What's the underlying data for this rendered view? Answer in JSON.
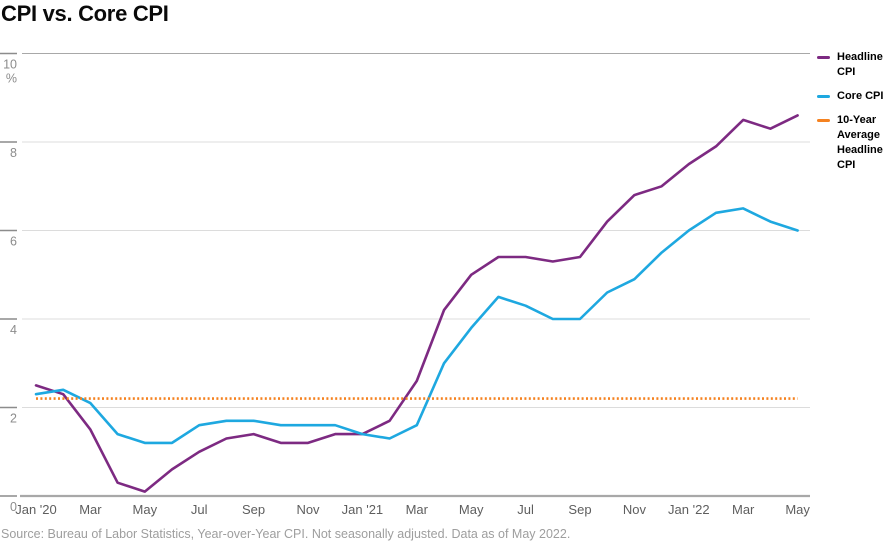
{
  "title": "CPI vs. Core CPI",
  "footer": {
    "source_note": "Source: Bureau of Labor Statistics, Year-over-Year CPI. Not seasonally adjusted. Data as of May 2022."
  },
  "legend": {
    "position": "right",
    "items": [
      {
        "label": "Headline CPI",
        "color": "#7D2A82"
      },
      {
        "label": "Core CPI",
        "color": "#1EA8E0"
      },
      {
        "label": "10-Year Average Headline CPI",
        "color": "#F58220"
      }
    ]
  },
  "chart_data": {
    "type": "line",
    "title": "CPI vs. Core CPI",
    "xlabel": "",
    "ylabel": "%",
    "ylim": [
      0,
      10
    ],
    "yticks": [
      0,
      2,
      4,
      6,
      8,
      10
    ],
    "grid": true,
    "legend_position": "right",
    "x": [
      "Jan '20",
      "Feb '20",
      "Mar '20",
      "Apr '20",
      "May '20",
      "Jun '20",
      "Jul '20",
      "Aug '20",
      "Sep '20",
      "Oct '20",
      "Nov '20",
      "Dec '20",
      "Jan '21",
      "Feb '21",
      "Mar '21",
      "Apr '21",
      "May '21",
      "Jun '21",
      "Jul '21",
      "Aug '21",
      "Sep '21",
      "Oct '21",
      "Nov '21",
      "Dec '21",
      "Jan '22",
      "Feb '22",
      "Mar '22",
      "Apr '22",
      "May '22"
    ],
    "x_tick_labels": [
      "Jan '20",
      "Mar",
      "May",
      "Jul",
      "Sep",
      "Nov",
      "Jan '21",
      "Mar",
      "May",
      "Jul",
      "Sep",
      "Nov",
      "Jan '22",
      "Mar",
      "May"
    ],
    "series": [
      {
        "name": "Headline CPI",
        "color": "#7D2A82",
        "style": "solid",
        "values": [
          2.5,
          2.3,
          1.5,
          0.3,
          0.1,
          0.6,
          1.0,
          1.3,
          1.4,
          1.2,
          1.2,
          1.4,
          1.4,
          1.7,
          2.6,
          4.2,
          5.0,
          5.4,
          5.4,
          5.3,
          5.4,
          6.2,
          6.8,
          7.0,
          7.5,
          7.9,
          8.5,
          8.3,
          8.6
        ]
      },
      {
        "name": "Core CPI",
        "color": "#1EA8E0",
        "style": "solid",
        "values": [
          2.3,
          2.4,
          2.1,
          1.4,
          1.2,
          1.2,
          1.6,
          1.7,
          1.7,
          1.6,
          1.6,
          1.6,
          1.4,
          1.3,
          1.6,
          3.0,
          3.8,
          4.5,
          4.3,
          4.0,
          4.0,
          4.6,
          4.9,
          5.5,
          6.0,
          6.4,
          6.5,
          6.2,
          6.0
        ]
      },
      {
        "name": "10-Year Average Headline CPI",
        "color": "#F58220",
        "style": "dotted",
        "constant_value": 2.2
      }
    ],
    "colors": {
      "grid": "#DCDCDC",
      "axis": "#A8A8A8",
      "tick": "#8C8C8C",
      "ytick_label": "#8C8C8C",
      "xtick_label": "#5E5E5E"
    }
  }
}
